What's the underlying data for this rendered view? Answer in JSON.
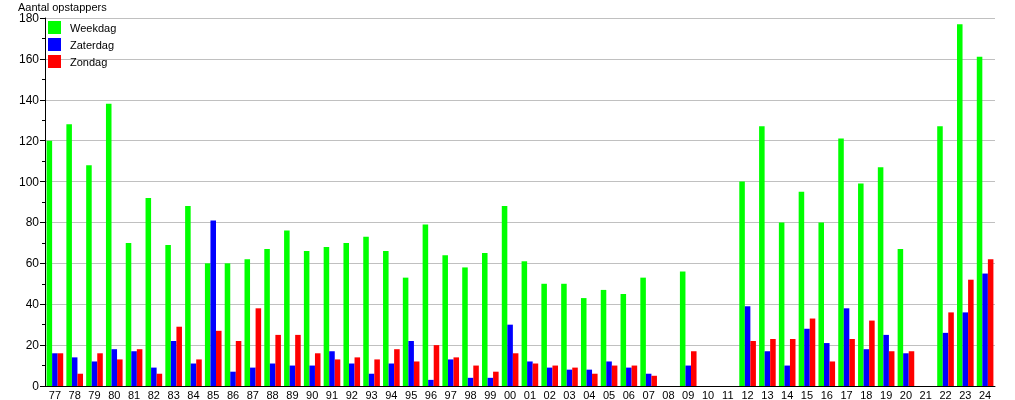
{
  "chart_data": {
    "type": "bar",
    "ylabel": "Aantal opstappers",
    "categories": [
      "77",
      "78",
      "79",
      "80",
      "81",
      "82",
      "83",
      "84",
      "85",
      "86",
      "87",
      "88",
      "89",
      "90",
      "91",
      "92",
      "93",
      "94",
      "95",
      "96",
      "97",
      "98",
      "99",
      "00",
      "01",
      "02",
      "03",
      "04",
      "05",
      "06",
      "07",
      "08",
      "09",
      "10",
      "11",
      "12",
      "13",
      "14",
      "15",
      "16",
      "17",
      "18",
      "19",
      "20",
      "21",
      "22",
      "23",
      "24"
    ],
    "series": [
      {
        "name": "Weekdag",
        "color": "#00ff00",
        "values": [
          120,
          128,
          108,
          138,
          70,
          92,
          69,
          88,
          60,
          60,
          62,
          67,
          76,
          66,
          68,
          70,
          73,
          66,
          53,
          79,
          64,
          58,
          65,
          88,
          61,
          50,
          50,
          43,
          47,
          45,
          53,
          null,
          56,
          null,
          null,
          100,
          127,
          80,
          95,
          80,
          121,
          99,
          107,
          67,
          null,
          127,
          177,
          161
        ]
      },
      {
        "name": "Zaterdag",
        "color": "#0000ff",
        "values": [
          16,
          14,
          12,
          18,
          17,
          9,
          22,
          11,
          81,
          7,
          9,
          11,
          10,
          10,
          17,
          11,
          6,
          11,
          22,
          3,
          13,
          4,
          4,
          30,
          12,
          9,
          8,
          8,
          12,
          9,
          6,
          null,
          10,
          null,
          null,
          39,
          17,
          10,
          28,
          21,
          38,
          18,
          25,
          16,
          null,
          26,
          36,
          55
        ]
      },
      {
        "name": "Zondag",
        "color": "#ff0000",
        "values": [
          16,
          6,
          16,
          13,
          18,
          6,
          29,
          13,
          27,
          22,
          38,
          25,
          25,
          16,
          13,
          14,
          13,
          18,
          12,
          20,
          14,
          10,
          7,
          16,
          11,
          10,
          9,
          6,
          10,
          10,
          5,
          null,
          17,
          null,
          null,
          22,
          23,
          23,
          33,
          12,
          23,
          32,
          17,
          17,
          null,
          36,
          52,
          62
        ]
      }
    ],
    "ylim": [
      0,
      180
    ],
    "yticks": [
      0,
      {
        "value": 10,
        "label": null
      },
      20,
      {
        "value": 30,
        "label": null
      },
      40,
      {
        "value": 50,
        "label": null
      },
      60,
      {
        "value": 70,
        "label": null
      },
      80,
      {
        "value": 90,
        "label": null
      },
      100,
      {
        "value": 110,
        "label": null
      },
      120,
      {
        "value": 130,
        "label": null
      },
      140,
      {
        "value": 150,
        "label": null
      },
      160,
      {
        "value": 170,
        "label": null
      },
      180
    ],
    "grid": "y",
    "legend": "top left"
  }
}
